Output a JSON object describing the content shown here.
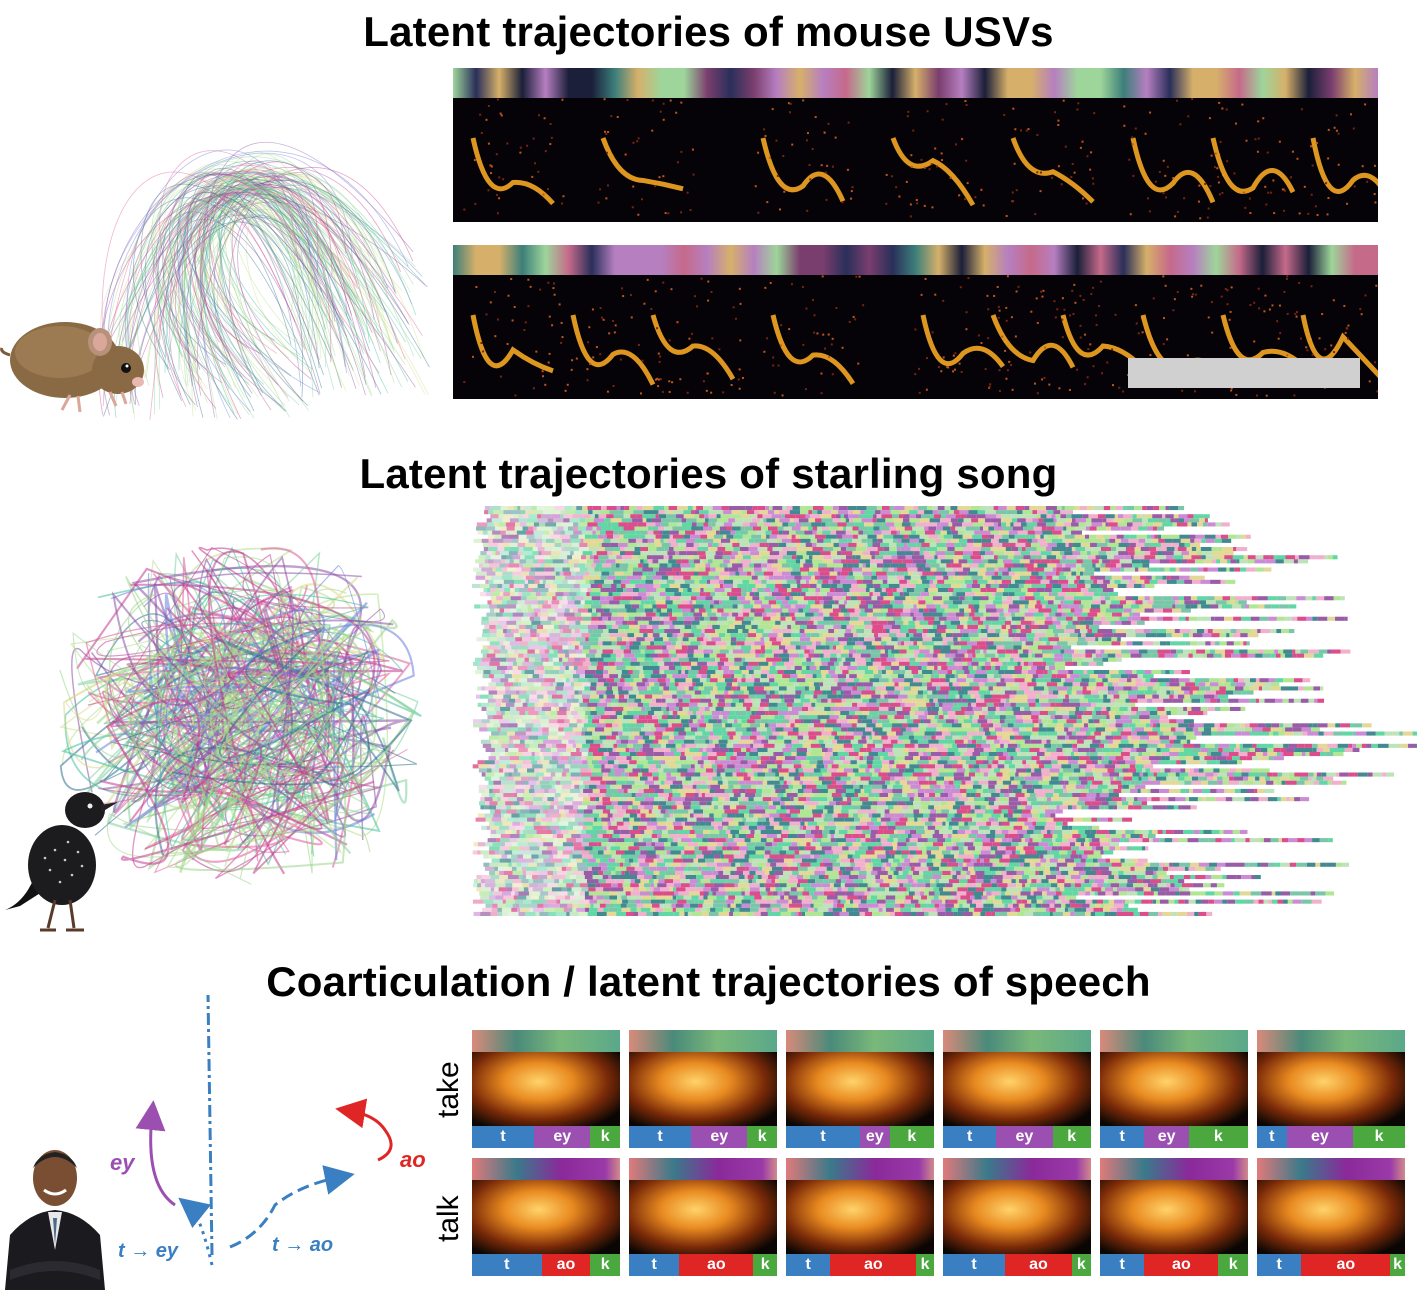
{
  "titles": {
    "mouse": "Latent trajectories of mouse USVs",
    "starling": "Latent trajectories of starling song",
    "speech": "Coarticulation / latent trajectories of speech"
  },
  "speech_trajectory_labels": {
    "t_ey": "t → ey",
    "t_ao": "t → ao",
    "ey": "ey",
    "ao": "ao"
  },
  "speech_grid": {
    "rows": [
      {
        "word": "take",
        "tiles": [
          [
            {
              "p": "t",
              "w": 0.42
            },
            {
              "p": "ey",
              "w": 0.38
            },
            {
              "p": "k",
              "w": 0.2
            }
          ],
          [
            {
              "p": "t",
              "w": 0.42
            },
            {
              "p": "ey",
              "w": 0.38
            },
            {
              "p": "k",
              "w": 0.2
            }
          ],
          [
            {
              "p": "t",
              "w": 0.5
            },
            {
              "p": "ey",
              "w": 0.2
            },
            {
              "p": "k",
              "w": 0.3
            }
          ],
          [
            {
              "p": "t",
              "w": 0.36
            },
            {
              "p": "ey",
              "w": 0.38
            },
            {
              "p": "k",
              "w": 0.26
            }
          ],
          [
            {
              "p": "t",
              "w": 0.3
            },
            {
              "p": "ey",
              "w": 0.3
            },
            {
              "p": "k",
              "w": 0.4
            }
          ],
          [
            {
              "p": "t",
              "w": 0.2
            },
            {
              "p": "ey",
              "w": 0.45
            },
            {
              "p": "k",
              "w": 0.35
            }
          ]
        ]
      },
      {
        "word": "talk",
        "tiles": [
          [
            {
              "p": "t",
              "w": 0.47
            },
            {
              "p": "ao",
              "w": 0.33
            },
            {
              "p": "k",
              "w": 0.2
            }
          ],
          [
            {
              "p": "t",
              "w": 0.34
            },
            {
              "p": "ao",
              "w": 0.5
            },
            {
              "p": "k",
              "w": 0.16
            }
          ],
          [
            {
              "p": "t",
              "w": 0.3
            },
            {
              "p": "ao",
              "w": 0.58
            },
            {
              "p": "k",
              "w": 0.12
            }
          ],
          [
            {
              "p": "t",
              "w": 0.42
            },
            {
              "p": "ao",
              "w": 0.45
            },
            {
              "p": "k",
              "w": 0.13
            }
          ],
          [
            {
              "p": "t",
              "w": 0.3
            },
            {
              "p": "ao",
              "w": 0.5
            },
            {
              "p": "k",
              "w": 0.2
            }
          ],
          [
            {
              "p": "t",
              "w": 0.3
            },
            {
              "p": "ao",
              "w": 0.6
            },
            {
              "p": "k",
              "w": 0.1
            }
          ]
        ]
      }
    ]
  },
  "colors": {
    "t": "#3a7fc1",
    "ey": "#9b4fb0",
    "ao": "#e02525",
    "k": "#4aa83e"
  }
}
